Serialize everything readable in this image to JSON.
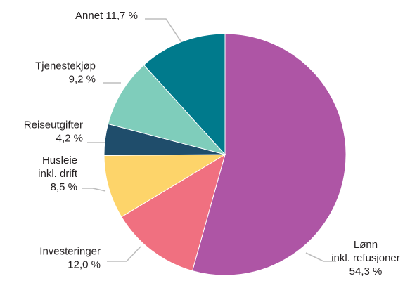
{
  "chart_data": {
    "type": "pie",
    "title": "",
    "start_angle_deg": 0,
    "direction": "clockwise",
    "slices": [
      {
        "name": "Lønn inkl. refusjoner",
        "label_lines": [
          "Lønn",
          "inkl. refusjoner"
        ],
        "value": 54.3,
        "value_label": "54,3 %",
        "color": "#ae55a5"
      },
      {
        "name": "Investeringer",
        "label_lines": [
          "Investeringer"
        ],
        "value": 12.0,
        "value_label": "12,0 %",
        "color": "#f07080"
      },
      {
        "name": "Husleie inkl. drift",
        "label_lines": [
          "Husleie",
          "inkl. drift"
        ],
        "value": 8.5,
        "value_label": "8,5 %",
        "color": "#fdd46a"
      },
      {
        "name": "Reiseutgifter",
        "label_lines": [
          "Reiseutgifter"
        ],
        "value": 4.2,
        "value_label": "4,2 %",
        "color": "#1f4d6b"
      },
      {
        "name": "Tjenestekjøp",
        "label_lines": [
          "Tjenestekjøp"
        ],
        "value": 9.2,
        "value_label": "9,2 %",
        "color": "#7fcdbb"
      },
      {
        "name": "Annet",
        "label_lines": [
          "Annet"
        ],
        "value": 11.7,
        "value_label": "11,7 %",
        "color": "#007a8c",
        "inline_value": true
      }
    ]
  }
}
